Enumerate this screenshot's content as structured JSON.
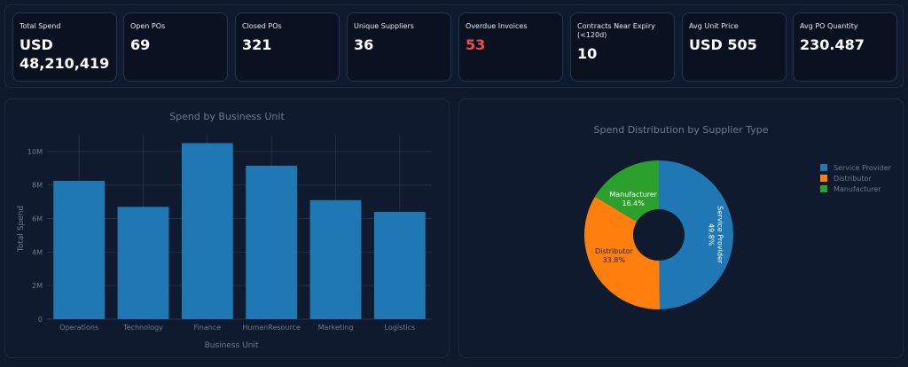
{
  "kpis": [
    {
      "label": "Total Spend",
      "value": "USD 48,210,419",
      "alert": false
    },
    {
      "label": "Open POs",
      "value": "69",
      "alert": false
    },
    {
      "label": "Closed POs",
      "value": "321",
      "alert": false
    },
    {
      "label": "Unique Suppliers",
      "value": "36",
      "alert": false
    },
    {
      "label": "Overdue Invoices",
      "value": "53",
      "alert": true
    },
    {
      "label": "Contracts Near Expiry (<120d)",
      "value": "10",
      "alert": false
    },
    {
      "label": "Avg Unit Price",
      "value": "USD 505",
      "alert": false
    },
    {
      "label": "Avg PO Quantity",
      "value": "230.487",
      "alert": false
    }
  ],
  "colors": {
    "bar": "#1f77b4",
    "service_provider": "#1f77b4",
    "distributor": "#ff7f0e",
    "manufacturer": "#2ca02c",
    "alert": "#ef4d4d"
  },
  "chart_data": [
    {
      "type": "bar",
      "title": "Spend by Business Unit",
      "xlabel": "Business Unit",
      "ylabel": "Total Spend",
      "categories": [
        "Operations",
        "Technology",
        "Finance",
        "HumanResource",
        "Marketing",
        "Logistics"
      ],
      "values": [
        8250000,
        6700000,
        10500000,
        9150000,
        7100000,
        6400000
      ],
      "ylim": [
        0,
        11000000
      ],
      "yticks": [
        0,
        2000000,
        4000000,
        6000000,
        8000000,
        10000000
      ],
      "ytick_labels": [
        "0",
        "2M",
        "4M",
        "6M",
        "8M",
        "10M"
      ],
      "grid": true
    },
    {
      "type": "pie",
      "title": "Spend Distribution by Supplier Type",
      "donut": true,
      "labels": [
        "Service Provider",
        "Distributor",
        "Manufacturer"
      ],
      "values": [
        49.8,
        33.8,
        16.4
      ],
      "value_labels": [
        "49.8%",
        "33.8%",
        "16.4%"
      ],
      "legend": {
        "position": "right",
        "entries": [
          "Service Provider",
          "Distributor",
          "Manufacturer"
        ]
      }
    }
  ]
}
